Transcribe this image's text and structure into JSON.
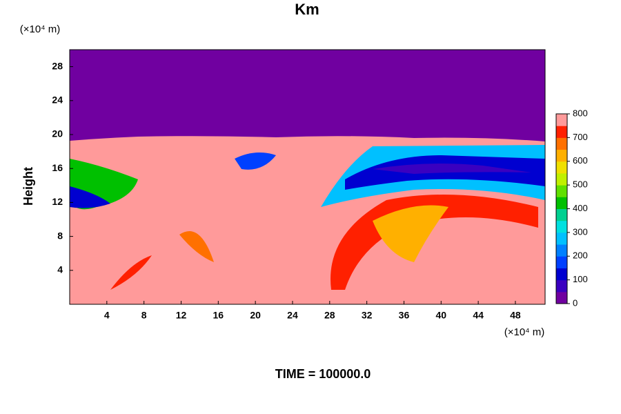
{
  "chart_data": {
    "type": "contour",
    "title": "Km",
    "y_unit_label": "(×10⁴ m)",
    "x_unit_label": "(×10⁴ m)",
    "ylabel": "Height",
    "footer": "TIME = 100000.0",
    "xlim": [
      0,
      51.2
    ],
    "xticks": [
      4,
      8,
      12,
      16,
      20,
      24,
      28,
      32,
      36,
      40,
      44,
      48
    ],
    "ylim": [
      0,
      30
    ],
    "yticks": [
      4,
      8,
      12,
      16,
      20,
      24,
      28
    ],
    "colorbar": {
      "lim": [
        0,
        800
      ],
      "ticks": [
        0,
        100,
        200,
        300,
        400,
        500,
        600,
        700,
        800
      ],
      "colors": [
        "#7000a0",
        "#3a00c0",
        "#0000d0",
        "#0040ff",
        "#0080ff",
        "#00c0ff",
        "#00e0e0",
        "#00d090",
        "#00c000",
        "#60e000",
        "#c0f000",
        "#f0e000",
        "#ffb000",
        "#ff7000",
        "#ff2000",
        "#ff9a9a"
      ]
    }
  }
}
